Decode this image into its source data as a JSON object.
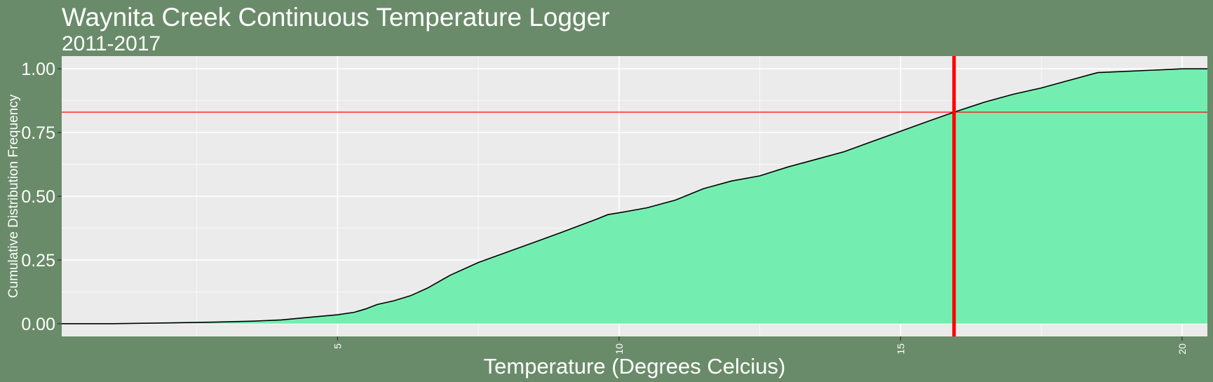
{
  "chart_data": {
    "type": "area",
    "title": "Waynita Creek Continuous Temperature Logger",
    "subtitle": "2011-2017",
    "xlabel": "Temperature (Degrees Celcius)",
    "ylabel": "Cumulative Distribution Frequency",
    "xlim": [
      0.1,
      20.45
    ],
    "ylim": [
      -0.05,
      1.05
    ],
    "x_ticks": [
      {
        "value": 5,
        "label": "5"
      },
      {
        "value": 10,
        "label": "10"
      },
      {
        "value": 15,
        "label": "15"
      },
      {
        "value": 20,
        "label": "20"
      }
    ],
    "y_ticks": [
      {
        "value": 0,
        "label": "0.00"
      },
      {
        "value": 0.25,
        "label": "0.25"
      },
      {
        "value": 0.5,
        "label": "0.50"
      },
      {
        "value": 0.75,
        "label": "0.75"
      },
      {
        "value": 1.0,
        "label": "1.00"
      }
    ],
    "grid": true,
    "reference_lines": {
      "vertical_x": 15.95,
      "horizontal_y": 0.83,
      "color": "#ff0000"
    },
    "colors": {
      "background": "#698b69",
      "panel": "#ebebeb",
      "grid": "#ffffff",
      "fill": "#74eeb0",
      "line": "#000000"
    },
    "series": [
      {
        "x": [
          0.1,
          1.0,
          2.0,
          2.8,
          3.5,
          4.0,
          4.5,
          5.0,
          5.3,
          5.5,
          5.7,
          6.0,
          6.3,
          6.6,
          7.0,
          7.5,
          8.0,
          8.5,
          9.0,
          9.3,
          9.6,
          9.8,
          10.0,
          10.5,
          11.0,
          11.5,
          12.0,
          12.5,
          13.0,
          13.5,
          14.0,
          14.5,
          15.0,
          15.5,
          15.95,
          16.5,
          17.0,
          17.5,
          18.0,
          18.5,
          19.0,
          19.5,
          20.0,
          20.45
        ],
        "y": [
          0.0,
          0.0,
          0.003,
          0.006,
          0.01,
          0.015,
          0.025,
          0.035,
          0.045,
          0.058,
          0.075,
          0.09,
          0.11,
          0.14,
          0.19,
          0.24,
          0.28,
          0.32,
          0.36,
          0.385,
          0.41,
          0.428,
          0.435,
          0.455,
          0.485,
          0.53,
          0.56,
          0.58,
          0.615,
          0.645,
          0.675,
          0.715,
          0.755,
          0.795,
          0.83,
          0.87,
          0.9,
          0.925,
          0.955,
          0.985,
          0.99,
          0.995,
          1.0,
          1.0
        ]
      }
    ]
  }
}
